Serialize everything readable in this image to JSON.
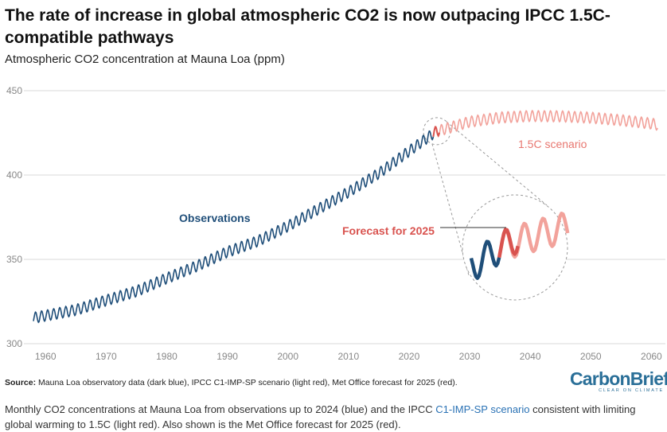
{
  "header": {
    "title": "The rate of increase in global atmospheric CO2 is now outpacing IPCC 1.5C-compatible pathways",
    "subtitle": "Atmospheric CO2 concentration at Mauna Loa (ppm)"
  },
  "chart_data": {
    "type": "line",
    "title": "The rate of increase in global atmospheric CO2 is now outpacing IPCC 1.5C-compatible pathways",
    "ylabel": "Atmospheric CO2 concentration at Mauna Loa (ppm)",
    "xlabel": "",
    "xlim": [
      1958,
      2061
    ],
    "ylim": [
      300,
      450
    ],
    "x_ticks": [
      "1960",
      "1970",
      "1980",
      "1990",
      "2000",
      "2010",
      "2020",
      "2030",
      "2040",
      "2050",
      "2060"
    ],
    "y_ticks": [
      "300",
      "350",
      "400",
      "450"
    ],
    "seasonal_amplitude_ppm": 3.2,
    "series": [
      {
        "name": "Observations",
        "color": "#1f4e79",
        "x": [
          1958,
          1965,
          1970,
          1975,
          1980,
          1985,
          1990,
          1995,
          2000,
          2005,
          2010,
          2015,
          2020,
          2024
        ],
        "y": [
          315.3,
          320.0,
          325.7,
          331.1,
          338.8,
          346.1,
          354.4,
          360.8,
          369.7,
          379.8,
          389.9,
          401.0,
          414.2,
          424.6
        ]
      },
      {
        "name": "Forecast for 2025",
        "color": "#d9534f",
        "x": [
          2024,
          2025
        ],
        "y": [
          424.6,
          427.0
        ]
      },
      {
        "name": "1.5C scenario",
        "color": "#f2a29b",
        "x": [
          2024,
          2025,
          2030,
          2035,
          2040,
          2045,
          2050,
          2055,
          2060,
          2061
        ],
        "y": [
          424.6,
          426.3,
          431.6,
          434.1,
          435.0,
          434.8,
          434.0,
          432.5,
          430.5,
          429.8
        ]
      }
    ],
    "annotations": {
      "observations": "Observations",
      "scenario": "1.5C scenario",
      "forecast": "Forecast for 2025"
    }
  },
  "footer": {
    "source_label": "Source:",
    "source_text": "Mauna Loa observatory data (dark blue), IPCC C1-IMP-SP scenario (light red), Met Office forecast for 2025 (red).",
    "logo_main": "CarbonBrief",
    "logo_sub": "CLEAR ON CLIMATE",
    "caption_pre": "Monthly CO2 concentrations at Mauna Loa from observations up to 2024 (blue) and the IPCC ",
    "caption_link": "C1-IMP-SP scenario",
    "caption_post": " consistent with limiting global warming to 1.5C (light red). Also shown is the Met Office forecast for 2025 (red)."
  },
  "colors": {
    "observations": "#1f4e79",
    "scenario": "#f2a29b",
    "forecast": "#d9534f",
    "scenario_label": "#e8766f",
    "brand": "#2a6f98"
  }
}
